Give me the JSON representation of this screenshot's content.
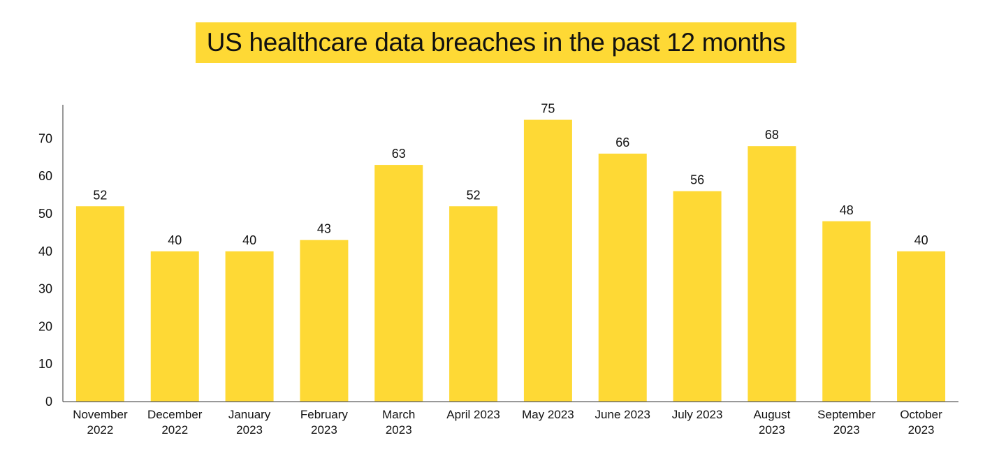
{
  "chart_data": {
    "type": "bar",
    "title": "US healthcare data breaches in the past 12 months",
    "categories": [
      [
        "November",
        "2022"
      ],
      [
        "December",
        "2022"
      ],
      [
        "January",
        "2023"
      ],
      [
        "February",
        "2023"
      ],
      [
        "March",
        "2023"
      ],
      [
        "April 2023"
      ],
      [
        "May 2023"
      ],
      [
        "June 2023"
      ],
      [
        "July 2023"
      ],
      [
        "August",
        "2023"
      ],
      [
        "September",
        "2023"
      ],
      [
        "October",
        "2023"
      ]
    ],
    "values": [
      52,
      40,
      40,
      43,
      63,
      52,
      75,
      66,
      56,
      68,
      48,
      40
    ],
    "yticks": [
      0,
      10,
      20,
      30,
      40,
      50,
      60,
      70
    ],
    "ylim": [
      0,
      79
    ],
    "xlabel": "",
    "ylabel": "",
    "grid": false,
    "bar_color": "#FED935",
    "title_bg_color": "#FED935"
  }
}
